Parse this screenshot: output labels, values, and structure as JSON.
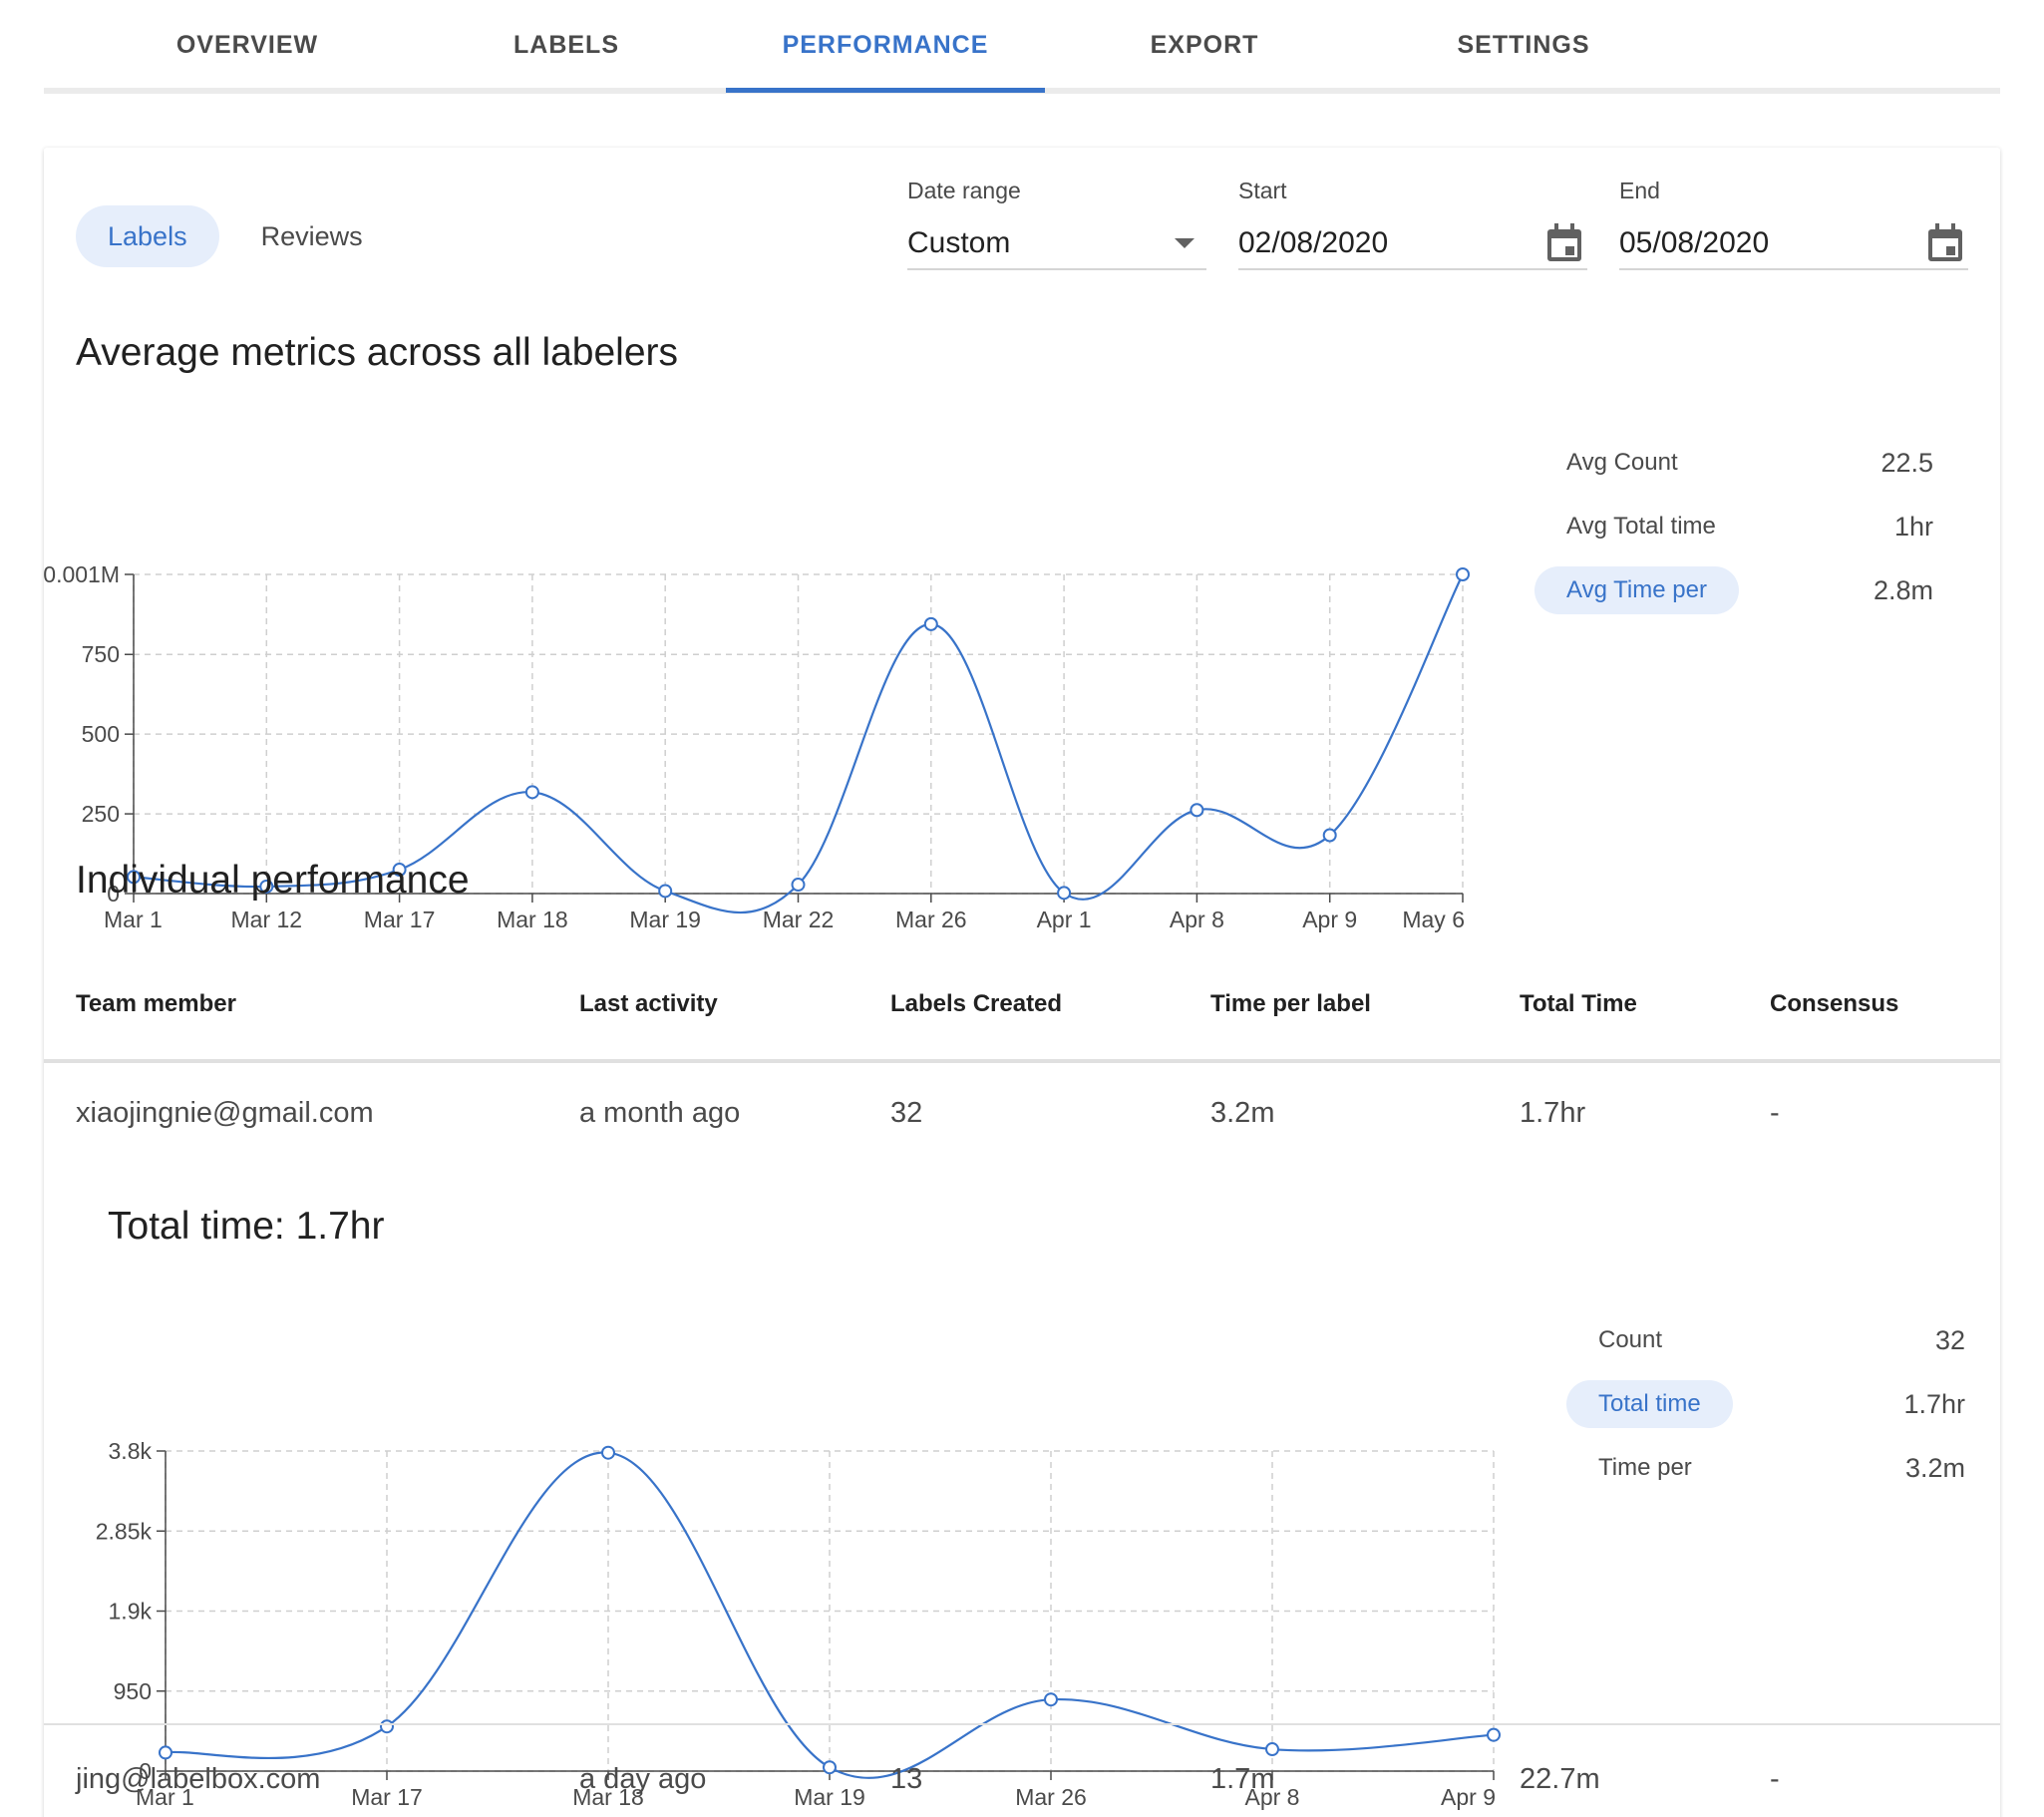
{
  "tabs": [
    {
      "label": "OVERVIEW"
    },
    {
      "label": "LABELS"
    },
    {
      "label": "PERFORMANCE"
    },
    {
      "label": "EXPORT"
    },
    {
      "label": "SETTINGS"
    }
  ],
  "active_tab": "PERFORMANCE",
  "toggle": {
    "labels": "Labels",
    "reviews": "Reviews",
    "active": "Labels"
  },
  "date_range": {
    "label": "Date range",
    "value": "Custom"
  },
  "start": {
    "label": "Start",
    "value": "02/08/2020"
  },
  "end": {
    "label": "End",
    "value": "05/08/2020"
  },
  "average_section": {
    "title": "Average metrics across all labelers",
    "metrics": [
      {
        "name": "Avg Count",
        "value": "22.5",
        "active": false
      },
      {
        "name": "Avg Total time",
        "value": "1hr",
        "active": false
      },
      {
        "name": "Avg Time per",
        "value": "2.8m",
        "active": true
      }
    ]
  },
  "individual_section": {
    "title": "Individual performance",
    "columns": [
      "Team member",
      "Last activity",
      "Labels Created",
      "Time per label",
      "Total Time",
      "Consensus"
    ],
    "rows": [
      {
        "member": "xiaojingnie@gmail.com",
        "last_activity": "a month ago",
        "labels_created": "32",
        "time_per_label": "3.2m",
        "total_time": "1.7hr",
        "consensus": "-"
      },
      {
        "member": "jing@labelbox.com",
        "last_activity": "a day ago",
        "labels_created": "13",
        "time_per_label": "1.7m",
        "total_time": "22.7m",
        "consensus": "-"
      }
    ],
    "expanded": {
      "title": "Total time: 1.7hr",
      "metrics": [
        {
          "name": "Count",
          "value": "32",
          "active": false
        },
        {
          "name": "Total time",
          "value": "1.7hr",
          "active": true
        },
        {
          "name": "Time per",
          "value": "3.2m",
          "active": false
        }
      ]
    }
  },
  "colors": {
    "accent": "#3873c9",
    "line": "#3873c9"
  },
  "chart_data": [
    {
      "type": "line",
      "categories": [
        "Mar 1",
        "Mar 12",
        "Mar 17",
        "Mar 18",
        "Mar 19",
        "Mar 22",
        "Mar 26",
        "Apr 1",
        "Apr 8",
        "Apr 9",
        "May 6"
      ],
      "values": [
        52,
        22,
        75,
        318,
        8,
        28,
        845,
        2,
        262,
        183,
        1001
      ],
      "yticks": [
        0,
        250,
        500,
        750,
        1001
      ],
      "ytick_labels": [
        "0",
        "250",
        "500",
        "750",
        "0.001M"
      ],
      "ylim": [
        0,
        1001
      ],
      "grid": true,
      "title": "",
      "xlabel": "",
      "ylabel": ""
    },
    {
      "type": "line",
      "categories": [
        "Mar 1",
        "Mar 17",
        "Mar 18",
        "Mar 19",
        "Mar 26",
        "Apr 8",
        "Apr 9"
      ],
      "values": [
        220,
        530,
        3780,
        45,
        850,
        260,
        430
      ],
      "yticks": [
        0,
        950,
        1900,
        2850,
        3800
      ],
      "ytick_labels": [
        "0",
        "950",
        "1.9k",
        "2.85k",
        "3.8k"
      ],
      "ylim": [
        0,
        3800
      ],
      "grid": true,
      "title": "",
      "xlabel": "",
      "ylabel": ""
    }
  ]
}
